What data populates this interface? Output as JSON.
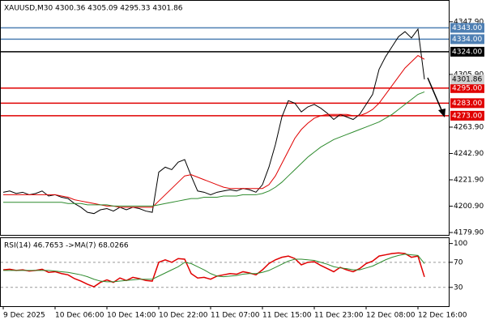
{
  "chart_data": [
    {
      "type": "line",
      "title": "XAUUSD,M30  4300.36 4305.09 4295.33 4301.86",
      "categories": [
        "9 Dec 2025",
        null,
        null,
        null,
        null,
        null,
        null,
        null,
        "10 Dec 06:00",
        null,
        null,
        null,
        null,
        null,
        null,
        null,
        "10 Dec 14:00",
        null,
        null,
        null,
        null,
        null,
        null,
        null,
        "10 Dec 22:00",
        null,
        null,
        null,
        null,
        null,
        null,
        null,
        "11 Dec 07:00",
        null,
        null,
        null,
        null,
        null,
        null,
        null,
        "11 Dec 15:00",
        null,
        null,
        null,
        null,
        null,
        null,
        null,
        "11 Dec 23:00",
        null,
        null,
        null,
        null,
        null,
        null,
        null,
        "12 Dec 08:00",
        null,
        null,
        null,
        null,
        null,
        null,
        null,
        "12 Dec 16:00",
        null
      ],
      "ylim": [
        4178,
        4362
      ],
      "yticks": [
        {
          "value": 4347.9,
          "label": "4347.90"
        },
        {
          "value": 4305.9,
          "label": "4305.90"
        },
        {
          "value": 4263.9,
          "label": "4263.90"
        },
        {
          "value": 4242.9,
          "label": "4242.90"
        },
        {
          "value": 4221.9,
          "label": "4221.90"
        },
        {
          "value": 4200.9,
          "label": "4200.90"
        },
        {
          "value": 4179.9,
          "label": "4179.90"
        }
      ],
      "levels": [
        {
          "value": 4343,
          "label": "4343.00",
          "color": "#4e7fb3"
        },
        {
          "value": 4334,
          "label": "4334.00",
          "color": "#4e7fb3"
        },
        {
          "value": 4324,
          "label": "4324.00",
          "color": "#000000"
        },
        {
          "value": 4295,
          "label": "4295.00",
          "color": "#e00000"
        },
        {
          "value": 4283,
          "label": "4283.00",
          "color": "#e00000"
        },
        {
          "value": 4273,
          "label": "4273.00",
          "color": "#e00000"
        }
      ],
      "last_price": {
        "value": 4301.86,
        "label": "4301.86"
      },
      "series": [
        {
          "color": "#000000",
          "values": [
            4212,
            4213,
            4211,
            4212,
            4210,
            4211,
            4213,
            4209,
            4210,
            4208,
            4207,
            4203,
            4200,
            4196,
            4195,
            4198,
            4199,
            4197,
            4200,
            4198,
            4200,
            4199,
            4197,
            4196,
            4228,
            4232,
            4230,
            4236,
            4238,
            4225,
            4213,
            4212,
            4210,
            4212,
            4213,
            4214,
            4213,
            4215,
            4214,
            4212,
            4218,
            4232,
            4250,
            4272,
            4285,
            4283,
            4276,
            4280,
            4282,
            4279,
            4275,
            4270,
            4274,
            4272,
            4270,
            4274,
            4282,
            4290,
            4310,
            4320,
            4328,
            4336,
            4340,
            4335,
            4342,
            4302
          ]
        },
        {
          "color": "#e00000",
          "values": [
            4210,
            4210,
            4210,
            4210,
            4210,
            4210,
            4210,
            4210,
            4210,
            4209,
            4208,
            4206,
            4205,
            4204,
            4203,
            4202,
            4201,
            4201,
            4200,
            4200,
            4200,
            4200,
            4200,
            4200,
            4205,
            4210,
            4215,
            4220,
            4225,
            4226,
            4224,
            4222,
            4220,
            4218,
            4216,
            4215,
            4215,
            4215,
            4215,
            4215,
            4215,
            4218,
            4225,
            4235,
            4245,
            4255,
            4262,
            4267,
            4271,
            4273,
            4274,
            4274,
            4274,
            4274,
            4273,
            4273,
            4275,
            4278,
            4283,
            4290,
            4297,
            4304,
            4311,
            4316,
            4321,
            4318
          ]
        },
        {
          "color": "#2e8b2e",
          "values": [
            4204,
            4204,
            4204,
            4204,
            4204,
            4204,
            4204,
            4204,
            4204,
            4204,
            4203,
            4203,
            4203,
            4202,
            4202,
            4202,
            4202,
            4201,
            4201,
            4201,
            4201,
            4201,
            4201,
            4201,
            4202,
            4203,
            4204,
            4205,
            4206,
            4207,
            4207,
            4208,
            4208,
            4208,
            4209,
            4209,
            4209,
            4210,
            4210,
            4210,
            4211,
            4213,
            4216,
            4220,
            4225,
            4230,
            4235,
            4240,
            4244,
            4248,
            4251,
            4254,
            4256,
            4258,
            4260,
            4262,
            4264,
            4266,
            4268,
            4271,
            4274,
            4278,
            4282,
            4286,
            4290,
            4292
          ]
        }
      ]
    },
    {
      "type": "line",
      "title": "RSI(14) 46.7653 ->MA(7) 68.0266",
      "ylim": [
        0,
        106
      ],
      "yticks": [
        100,
        70,
        30
      ],
      "levels": [
        70,
        30
      ],
      "series": [
        {
          "color": "#e00000",
          "values": [
            58,
            59,
            57,
            58,
            56,
            57,
            59,
            54,
            55,
            52,
            50,
            44,
            40,
            35,
            31,
            38,
            42,
            38,
            45,
            41,
            46,
            44,
            41,
            40,
            70,
            74,
            70,
            76,
            75,
            52,
            45,
            46,
            43,
            48,
            50,
            52,
            51,
            55,
            53,
            50,
            58,
            68,
            74,
            78,
            80,
            76,
            66,
            70,
            71,
            65,
            60,
            55,
            62,
            58,
            55,
            60,
            68,
            72,
            80,
            82,
            84,
            85,
            84,
            78,
            80,
            46.8
          ]
        },
        {
          "color": "#2e8b2e",
          "values": [
            57,
            57,
            57,
            57,
            57,
            57,
            57,
            57,
            56,
            55,
            54,
            52,
            50,
            47,
            43,
            40,
            39,
            39,
            40,
            41,
            42,
            43,
            43,
            43,
            48,
            53,
            58,
            63,
            70,
            68,
            63,
            58,
            52,
            48,
            47,
            48,
            49,
            51,
            52,
            52,
            54,
            57,
            62,
            67,
            72,
            75,
            75,
            74,
            73,
            70,
            67,
            63,
            61,
            60,
            58,
            58,
            61,
            64,
            69,
            74,
            78,
            81,
            83,
            82,
            81,
            68
          ]
        }
      ]
    }
  ]
}
